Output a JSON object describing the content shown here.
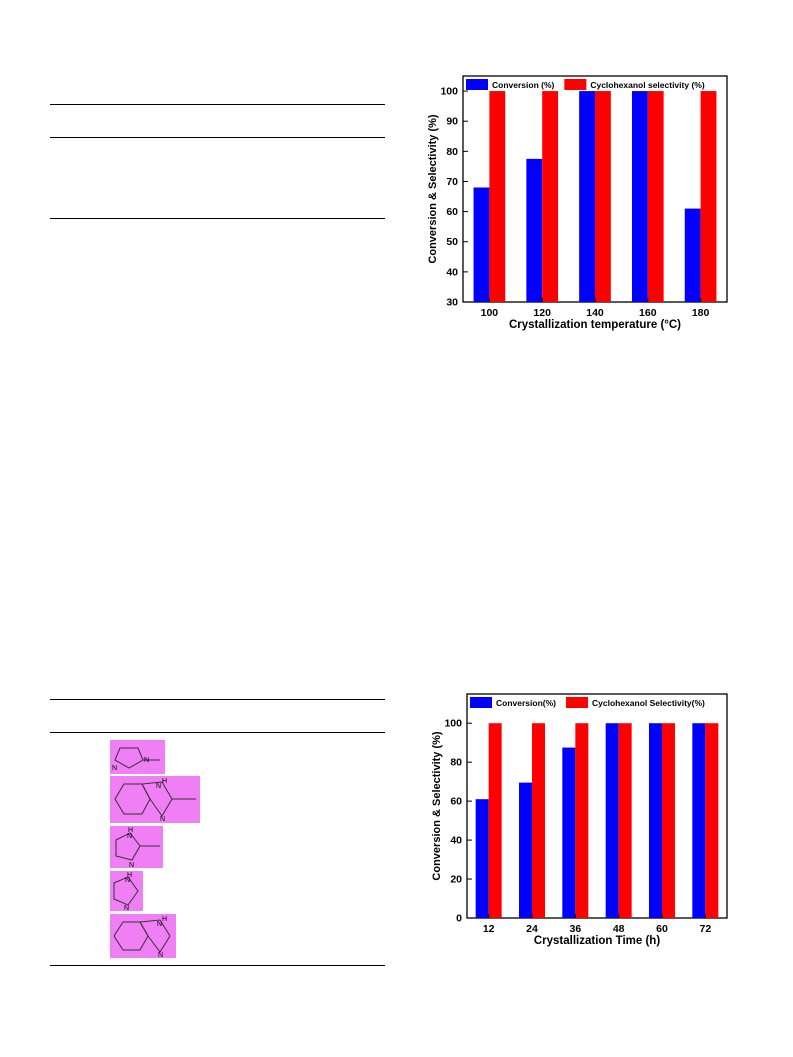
{
  "charts": {
    "temperature": {
      "type": "bar",
      "categories": [
        "100",
        "120",
        "140",
        "160",
        "180"
      ],
      "series": [
        {
          "name": "Conversion (%)",
          "color": "#0000ff",
          "values": [
            68,
            77.5,
            100,
            100,
            61
          ]
        },
        {
          "name": "Cyclohexanol selectivity (%)",
          "color": "#ff0000",
          "values": [
            100,
            100,
            100,
            100,
            100
          ]
        }
      ],
      "xlabel": "Crystallization temperature (°C)",
      "ylabel": "Conversion & Selectivity (%)",
      "ylim": [
        30,
        105
      ],
      "yticks": [
        30,
        40,
        50,
        60,
        70,
        80,
        90,
        100
      ],
      "legend": "top"
    },
    "time": {
      "type": "bar",
      "categories": [
        "12",
        "24",
        "36",
        "48",
        "60",
        "72"
      ],
      "series": [
        {
          "name": "Conversion(%)",
          "color": "#0000ff",
          "values": [
            61,
            69.5,
            87.5,
            100,
            100,
            100
          ]
        },
        {
          "name": "Cyclohexanol Selectivity(%)",
          "color": "#ff0000",
          "values": [
            100,
            100,
            100,
            100,
            100,
            100
          ]
        }
      ],
      "xlabel": "Crystallization Time (h)",
      "ylabel": "Conversion & Selectivity (%)",
      "ylim": [
        0,
        115
      ],
      "yticks": [
        0,
        20,
        40,
        60,
        80,
        100
      ],
      "legend": "top"
    }
  },
  "structures": [
    {
      "name": "1-methylimidazole",
      "labels": [
        "N",
        "N"
      ]
    },
    {
      "name": "2-methylbenzimidazole",
      "labels": [
        "H",
        "N",
        "N"
      ]
    },
    {
      "name": "2-methylimidazole",
      "labels": [
        "H",
        "N",
        "N"
      ]
    },
    {
      "name": "imidazole",
      "labels": [
        "H",
        "N",
        "N"
      ]
    },
    {
      "name": "benzimidazole",
      "labels": [
        "H",
        "N",
        "N"
      ]
    }
  ]
}
